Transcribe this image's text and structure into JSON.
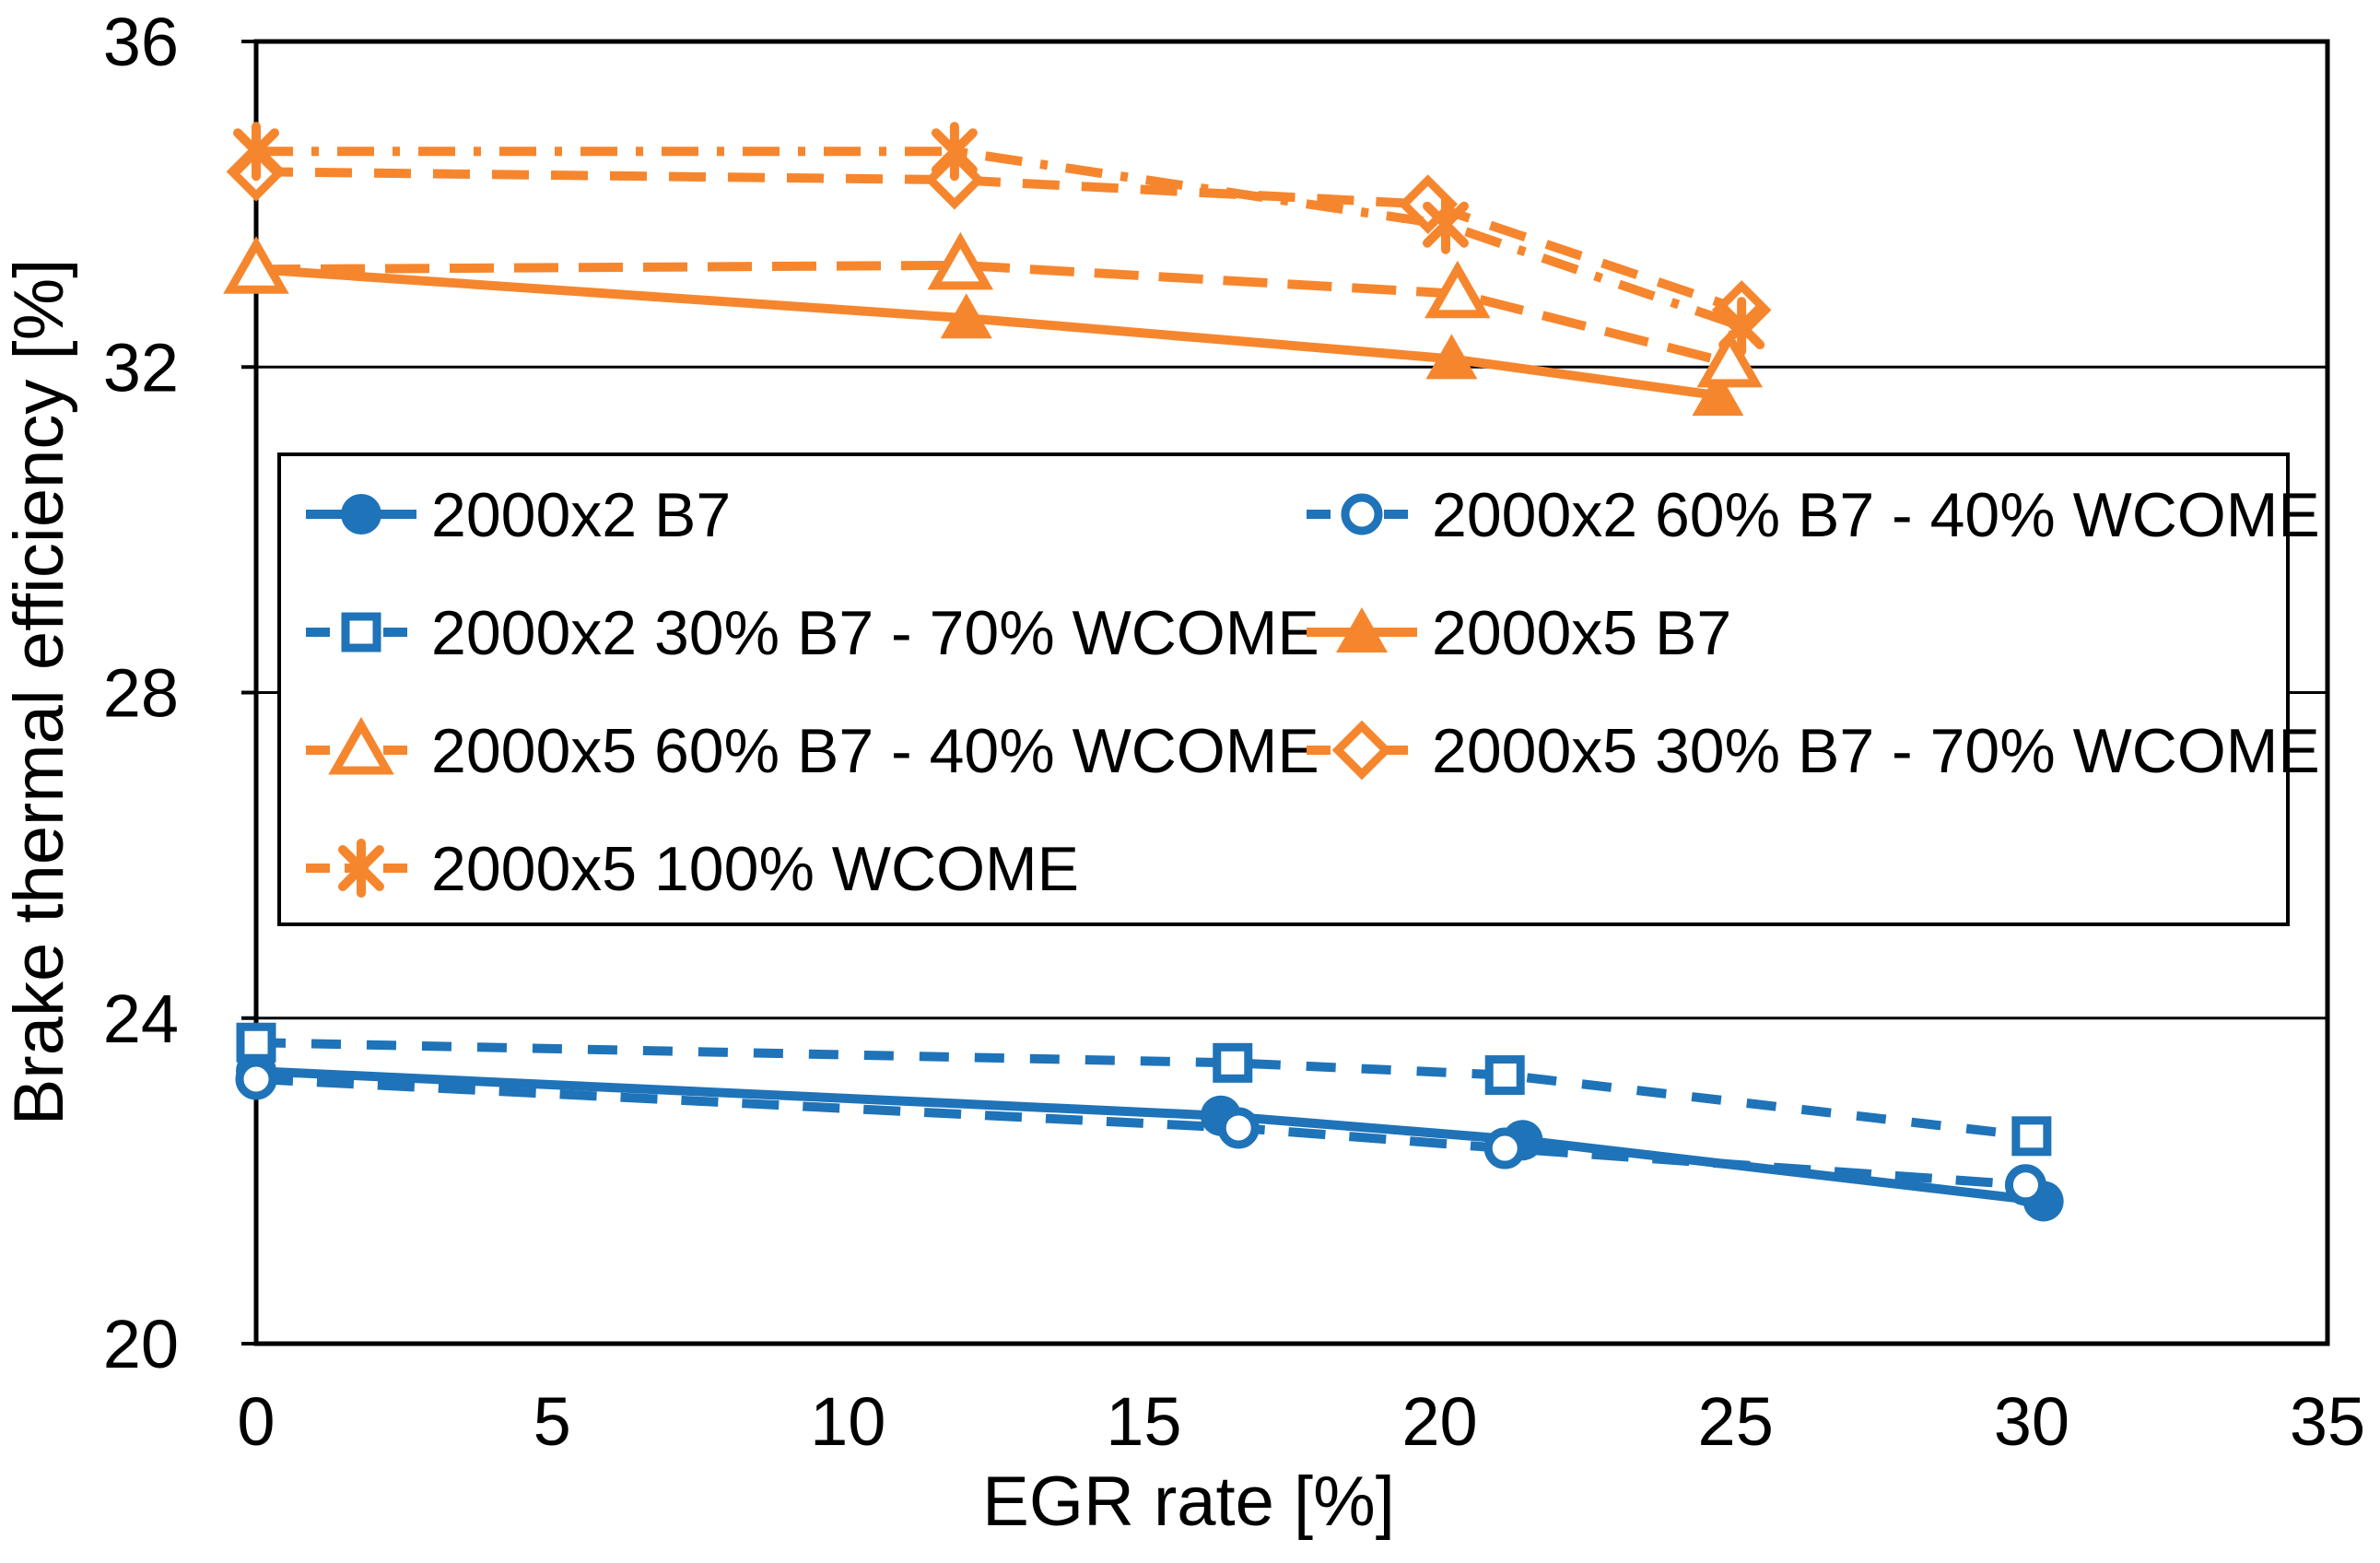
{
  "colors": {
    "blue": "#1f73b8",
    "orange": "#f6862e",
    "axis": "#000000",
    "background": "#ffffff"
  },
  "chart_data": {
    "type": "line",
    "title": "",
    "xlabel": "EGR rate [%]",
    "ylabel": "Brake thermal efficiency [%]",
    "xlim": [
      0,
      35
    ],
    "ylim": [
      20,
      36
    ],
    "xticks": [
      0,
      5,
      10,
      15,
      20,
      25,
      30,
      35
    ],
    "yticks": [
      20,
      24,
      28,
      32,
      36
    ],
    "gridlines_y": [
      24,
      28,
      32
    ],
    "grid": "horizontal-only",
    "legend_position": "inside-upper-middle",
    "series": [
      {
        "name": "2000x2 B7",
        "color": "blue",
        "marker": "circle",
        "marker_fill": "solid",
        "line": "solid",
        "points": [
          [
            0,
            23.35
          ],
          [
            16.3,
            22.8
          ],
          [
            21.4,
            22.5
          ],
          [
            30.2,
            21.75
          ]
        ]
      },
      {
        "name": "2000x2 60% B7 - 40% WCOME",
        "color": "blue",
        "marker": "circle",
        "marker_fill": "open",
        "line": "dash",
        "points": [
          [
            0,
            23.25
          ],
          [
            16.6,
            22.65
          ],
          [
            21.1,
            22.4
          ],
          [
            29.9,
            21.95
          ]
        ]
      },
      {
        "name": "2000x2 30% B7 - 70% WCOME",
        "color": "blue",
        "marker": "square",
        "marker_fill": "open",
        "line": "dash2",
        "points": [
          [
            0,
            23.7
          ],
          [
            16.5,
            23.45
          ],
          [
            21.1,
            23.3
          ],
          [
            30.0,
            22.55
          ]
        ]
      },
      {
        "name": "2000x5 B7",
        "color": "orange",
        "marker": "triangle",
        "marker_fill": "solid",
        "line": "solid",
        "points": [
          [
            0,
            33.2
          ],
          [
            12.0,
            32.6
          ],
          [
            20.2,
            32.1
          ],
          [
            24.7,
            31.65
          ]
        ]
      },
      {
        "name": "2000x5 60% B7 - 40% WCOME",
        "color": "orange",
        "marker": "triangle",
        "marker_fill": "open",
        "line": "dash3",
        "points": [
          [
            0,
            33.2
          ],
          [
            11.9,
            33.25
          ],
          [
            20.3,
            32.9
          ],
          [
            24.9,
            32.05
          ]
        ]
      },
      {
        "name": "2000x5 30% B7 - 70% WCOME",
        "color": "orange",
        "marker": "diamond",
        "marker_fill": "open",
        "line": "dash4",
        "points": [
          [
            0,
            34.4
          ],
          [
            11.8,
            34.3
          ],
          [
            19.8,
            34.0
          ],
          [
            25.1,
            32.7
          ]
        ]
      },
      {
        "name": "2000x5 100% WCOME",
        "color": "orange",
        "marker": "asterisk",
        "marker_fill": "line",
        "line": "dashdot",
        "points": [
          [
            0,
            34.65
          ],
          [
            11.8,
            34.65
          ],
          [
            20.1,
            33.75
          ],
          [
            25.1,
            32.5
          ]
        ]
      }
    ]
  }
}
